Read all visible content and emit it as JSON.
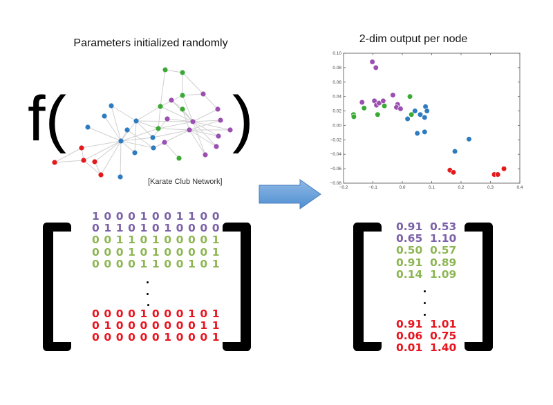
{
  "left": {
    "title": "Parameters initialized randomly",
    "function_open": "f(",
    "function_close": ")",
    "caption": "[Karate Club Network]",
    "matrix": {
      "top_rows": [
        {
          "text": "1 0 0 0 1 0 0 1 1 0 0",
          "color": "#7b62a8"
        },
        {
          "text": "0 1 1 0 1 0 1 0 0 0 0",
          "color": "#7b62a8"
        },
        {
          "text": "0 0 1 1 0 1 0 0 0 0 1",
          "color": "#8db653"
        },
        {
          "text": "0 0 0 1 0 1 0 0 0 0 1",
          "color": "#8db653"
        },
        {
          "text": "0 0 0 0 1 1 0 0 1 0 1",
          "color": "#8db653"
        }
      ],
      "bottom_rows": [
        {
          "text": "0 0 0 0 1 0 0 0 1 0 1",
          "color": "#e8141e"
        },
        {
          "text": "0 1 0 0 0 0 0 0 0 1 1",
          "color": "#e8141e"
        },
        {
          "text": "0 0 0 0 0 0 1 0 0 0 1",
          "color": "#e8141e"
        }
      ]
    },
    "graph_colors": {
      "green": "#3aaa35",
      "purple": "#9b4fb0",
      "blue": "#2e7bbf",
      "red": "#e31a1c",
      "edge": "#cfcfcf"
    }
  },
  "arrow": {
    "color": "#5b9bd5",
    "icon": "right-arrow-icon"
  },
  "right": {
    "title": "2-dim output per node",
    "matrix": {
      "top_rows": [
        {
          "text": "0.91  0.53",
          "color": "#7b62a8"
        },
        {
          "text": "0.65  1.10",
          "color": "#7b62a8"
        },
        {
          "text": "0.50  0.57",
          "color": "#8db653"
        },
        {
          "text": "0.91  0.89",
          "color": "#8db653"
        },
        {
          "text": "0.14  1.09",
          "color": "#8db653"
        }
      ],
      "bottom_rows": [
        {
          "text": "0.91  1.01",
          "color": "#e8141e"
        },
        {
          "text": "0.06  0.75",
          "color": "#e8141e"
        },
        {
          "text": "0.01  1.40",
          "color": "#e8141e"
        }
      ]
    }
  },
  "chart_data": {
    "type": "scatter",
    "title": "2-dim output per node",
    "xlabel": "",
    "ylabel": "",
    "xlim": [
      -0.2,
      0.4
    ],
    "ylim": [
      -0.08,
      0.1
    ],
    "xticks": [
      "−0.2",
      "−0.1",
      "0.0",
      "0.1",
      "0.2",
      "0.3",
      "0.4"
    ],
    "xtick_values": [
      -0.2,
      -0.1,
      0.0,
      0.1,
      0.2,
      0.3,
      0.4
    ],
    "yticks": [
      "0.10",
      "0.08",
      "0.06",
      "0.04",
      "0.02",
      "0.00",
      "−0.02",
      "−0.04",
      "−0.06",
      "−0.08"
    ],
    "ytick_values": [
      0.1,
      0.08,
      0.06,
      0.04,
      0.02,
      0.0,
      -0.02,
      -0.04,
      -0.06,
      -0.08
    ],
    "grid": false,
    "series": [
      {
        "color": "#9b4fb0",
        "points": [
          [
            -0.102,
            0.088
          ],
          [
            -0.09,
            0.08
          ],
          [
            -0.137,
            0.032
          ],
          [
            -0.095,
            0.034
          ],
          [
            -0.088,
            0.028
          ],
          [
            -0.079,
            0.031
          ],
          [
            -0.065,
            0.034
          ],
          [
            -0.032,
            0.042
          ],
          [
            -0.016,
            0.029
          ],
          [
            -0.02,
            0.025
          ],
          [
            -0.006,
            0.023
          ]
        ]
      },
      {
        "color": "#3aaa35",
        "points": [
          [
            -0.166,
            0.015
          ],
          [
            -0.165,
            0.012
          ],
          [
            -0.13,
            0.024
          ],
          [
            -0.084,
            0.015
          ],
          [
            -0.061,
            0.027
          ],
          [
            0.026,
            0.04
          ],
          [
            0.031,
            0.015
          ]
        ]
      },
      {
        "color": "#2e7bbf",
        "points": [
          [
            0.018,
            0.009
          ],
          [
            0.043,
            0.02
          ],
          [
            0.061,
            0.015
          ],
          [
            0.076,
            0.011
          ],
          [
            0.079,
            0.026
          ],
          [
            0.084,
            0.02
          ],
          [
            0.051,
            -0.011
          ],
          [
            0.076,
            -0.009
          ],
          [
            0.179,
            -0.036
          ],
          [
            0.227,
            -0.019
          ]
        ]
      },
      {
        "color": "#e31a1c",
        "points": [
          [
            0.162,
            -0.062
          ],
          [
            0.174,
            -0.065
          ],
          [
            0.313,
            -0.068
          ],
          [
            0.325,
            -0.068
          ],
          [
            0.346,
            -0.06
          ]
        ]
      }
    ]
  }
}
